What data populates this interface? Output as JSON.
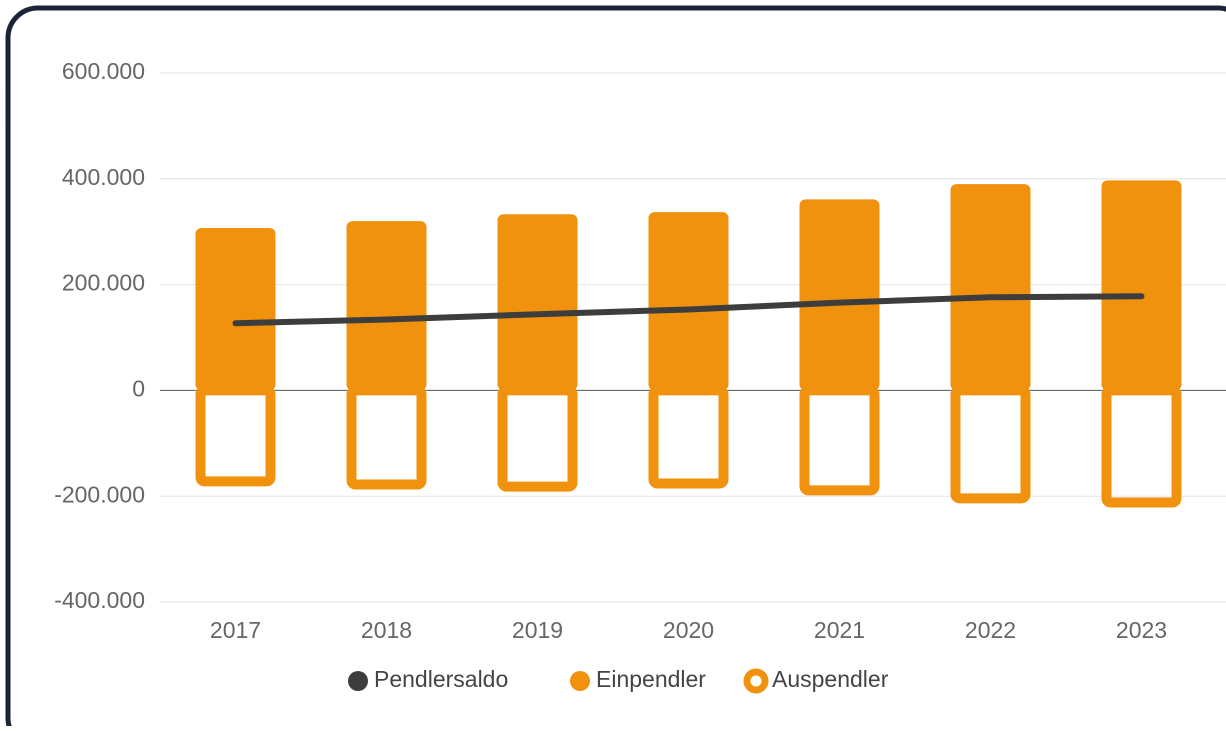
{
  "chart_data": {
    "type": "bar_line",
    "categories": [
      "2017",
      "2018",
      "2019",
      "2020",
      "2021",
      "2022",
      "2023"
    ],
    "series": [
      {
        "name": "Pendlersaldo",
        "color": "#3d3d3d",
        "type": "line",
        "values": [
          127000,
          134000,
          144000,
          153000,
          166000,
          176000,
          178000
        ]
      },
      {
        "name": "Einpendler",
        "color": "#f0920e",
        "type": "bar",
        "values": [
          307000,
          320000,
          333000,
          337000,
          361000,
          390000,
          397000
        ]
      },
      {
        "name": "Auspendler",
        "color": "#f0920e",
        "type": "bar-outline",
        "values": [
          -172000,
          -178000,
          -182000,
          -176000,
          -189000,
          -204000,
          -212000
        ]
      }
    ],
    "ylim": [
      -400000,
      600000
    ],
    "yticks": [
      {
        "value": -400000,
        "label": "-400.000"
      },
      {
        "value": -200000,
        "label": "-200.000"
      },
      0,
      {
        "value": 200000,
        "label": "200.000"
      },
      {
        "value": 400000,
        "label": "400.000"
      },
      {
        "value": 600000,
        "label": "600.000"
      }
    ],
    "grid": true,
    "legend": "bottom"
  }
}
